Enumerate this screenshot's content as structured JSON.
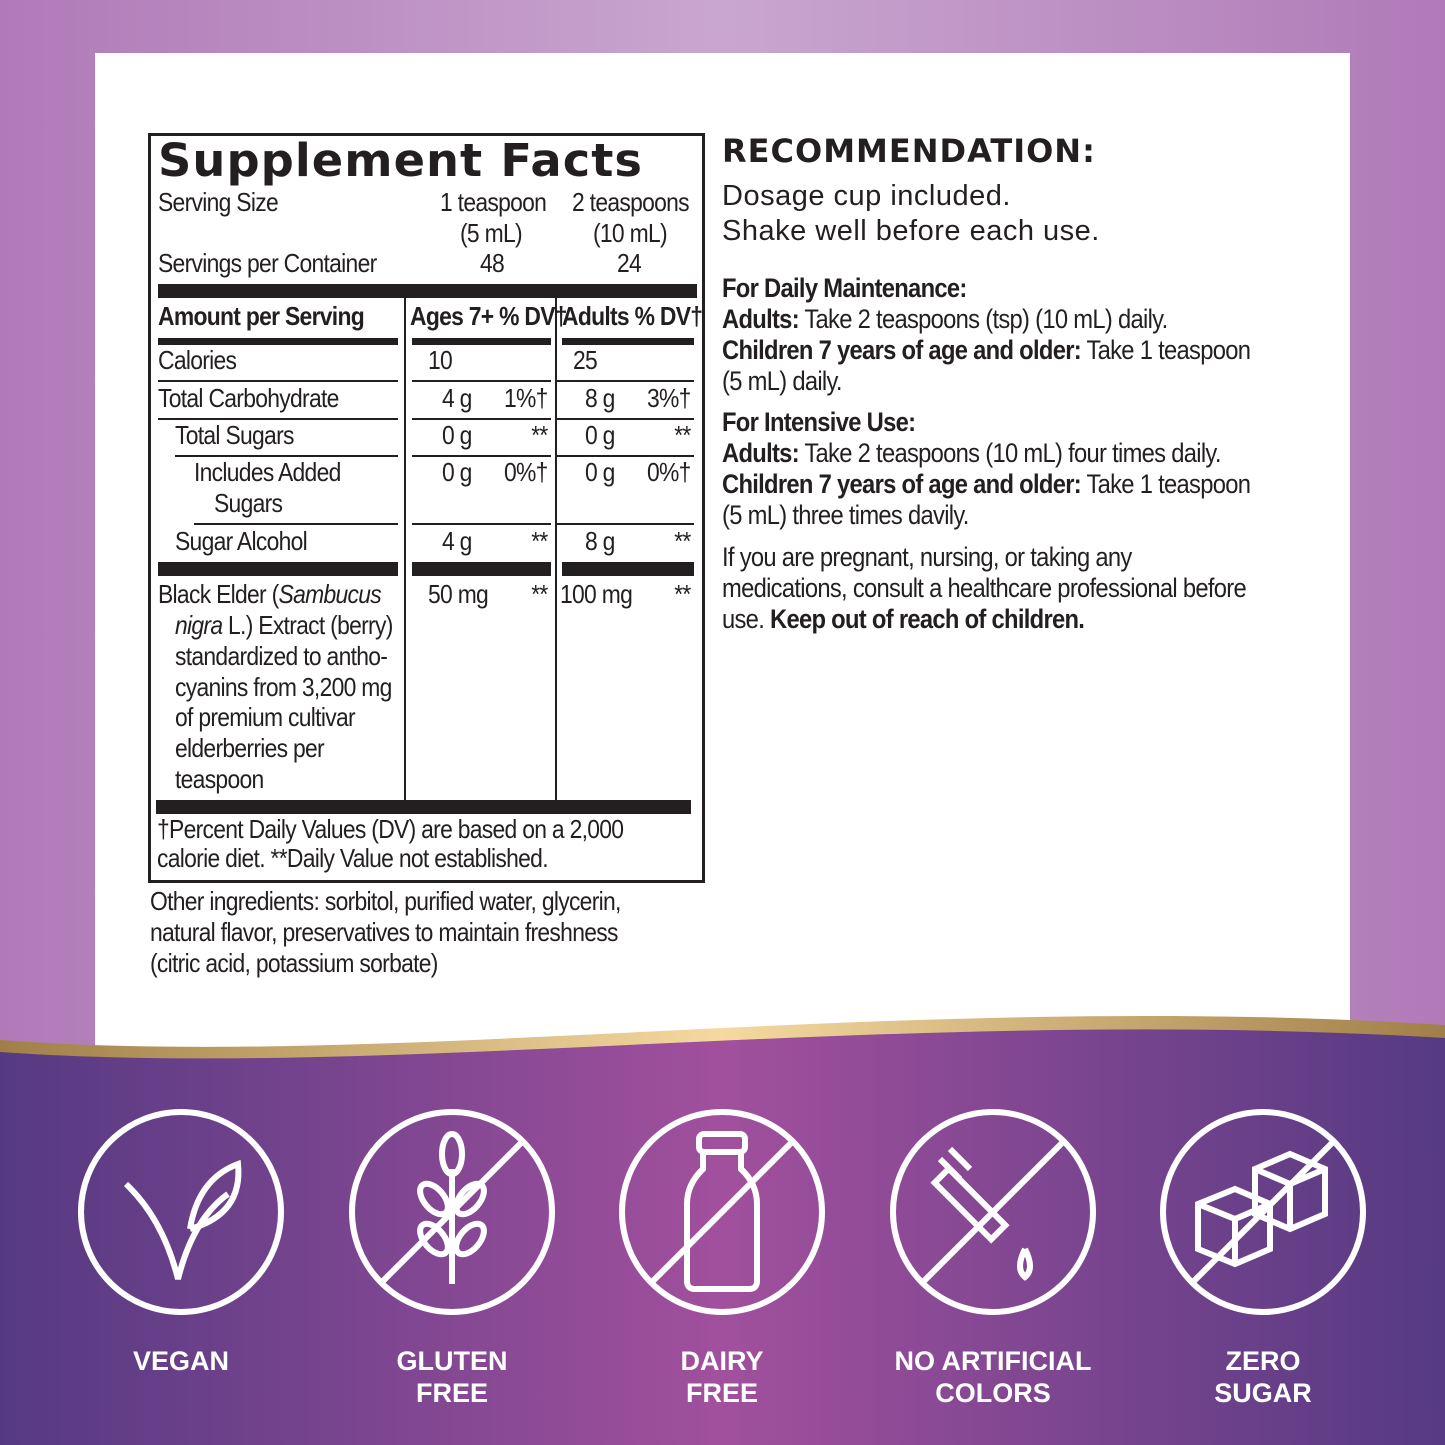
{
  "facts": {
    "title": "Supplement Facts",
    "serving_size_label": "Serving Size",
    "col1_serving": "1 teaspoon",
    "col1_ml": "(5 mL)",
    "col2_serving": "2 teaspoons",
    "col2_ml": "(10 mL)",
    "servings_label": "Servings per Container",
    "col1_servings": "48",
    "col2_servings": "24",
    "header": {
      "amount": "Amount per Serving",
      "col1": "Ages 7+ % DV†",
      "col2": "Adults % DV†"
    },
    "rows": [
      {
        "name": "Calories",
        "a1": "10",
        "d1": "",
        "a2": "25",
        "d2": ""
      },
      {
        "name": "Total Carbohydrate",
        "a1": "4 g",
        "d1": "1%†",
        "a2": "8 g",
        "d2": "3%†"
      },
      {
        "name": "Total Sugars",
        "a1": "0 g",
        "d1": "**",
        "a2": "0 g",
        "d2": "**"
      },
      {
        "name": "Includes Added",
        "name2": "Sugars",
        "a1": "0 g",
        "d1": "0%†",
        "a2": "0 g",
        "d2": "0%†"
      },
      {
        "name": "Sugar Alcohol",
        "a1": "4 g",
        "d1": "**",
        "a2": "8 g",
        "d2": "**"
      }
    ],
    "elder": {
      "l1a": "Black Elder (",
      "l1b": "Sambucus",
      "l2a": "nigra",
      "l2b": " L.) Extract (berry)",
      "l3": "standardized to antho-",
      "l4": "cyanins from 3,200 mg",
      "l5": "of premium cultivar",
      "l6": "elderberries per",
      "l7": "teaspoon",
      "a1": "50 mg",
      "d1": "**",
      "a2": "100 mg",
      "d2": "**"
    },
    "foot1": "†Percent Daily Values (DV) are based on a 2,000",
    "foot2": "calorie diet. **Daily Value not established."
  },
  "other": [
    "Other ingredients: sorbitol, purified water, glycerin,",
    "natural flavor, preservatives to maintain freshness",
    "(citric acid, potassium sorbate)"
  ],
  "rec": {
    "title": "RECOMMENDATION:",
    "l1": "Dosage cup included.",
    "l2": "Shake well before each use.",
    "daily_title": "For Daily Maintenance:",
    "d_adults_b": "Adults:",
    "d_adults": " Take 2 teaspoons (tsp) (10 mL) daily.",
    "d_child_b": "Children 7 years of age and older:",
    "d_child": " Take 1 teaspoon",
    "d_child2": "(5 mL) daily.",
    "int_title": "For Intensive Use:",
    "i_adults_b": "Adults:",
    "i_adults": " Take 2 teaspoons (10 mL) four times daily.",
    "i_child_b": "Children 7 years of age and older:",
    "i_child": " Take 1 teaspoon",
    "i_child2": "(5 mL) three times davily.",
    "w1": "If you are pregnant, nursing, or taking any",
    "w2": "medications, consult a healthcare professional before",
    "w3a": "use. ",
    "w3b": "Keep out of reach of children."
  },
  "badges": [
    {
      "icon": "leaf-icon",
      "l1": "VEGAN",
      "l2": ""
    },
    {
      "icon": "wheat-crossed-icon",
      "l1": "GLUTEN",
      "l2": "FREE"
    },
    {
      "icon": "milk-bottle-crossed-icon",
      "l1": "DAIRY",
      "l2": "FREE"
    },
    {
      "icon": "dropper-crossed-icon",
      "l1": "NO ARTIFICIAL",
      "l2": "COLORS"
    },
    {
      "icon": "sugar-cubes-crossed-icon",
      "l1": "ZERO",
      "l2": "SUGAR"
    }
  ],
  "colors": {
    "purple": "#7b3f8e",
    "gold": "#d9b56e",
    "text": "#231f20"
  }
}
